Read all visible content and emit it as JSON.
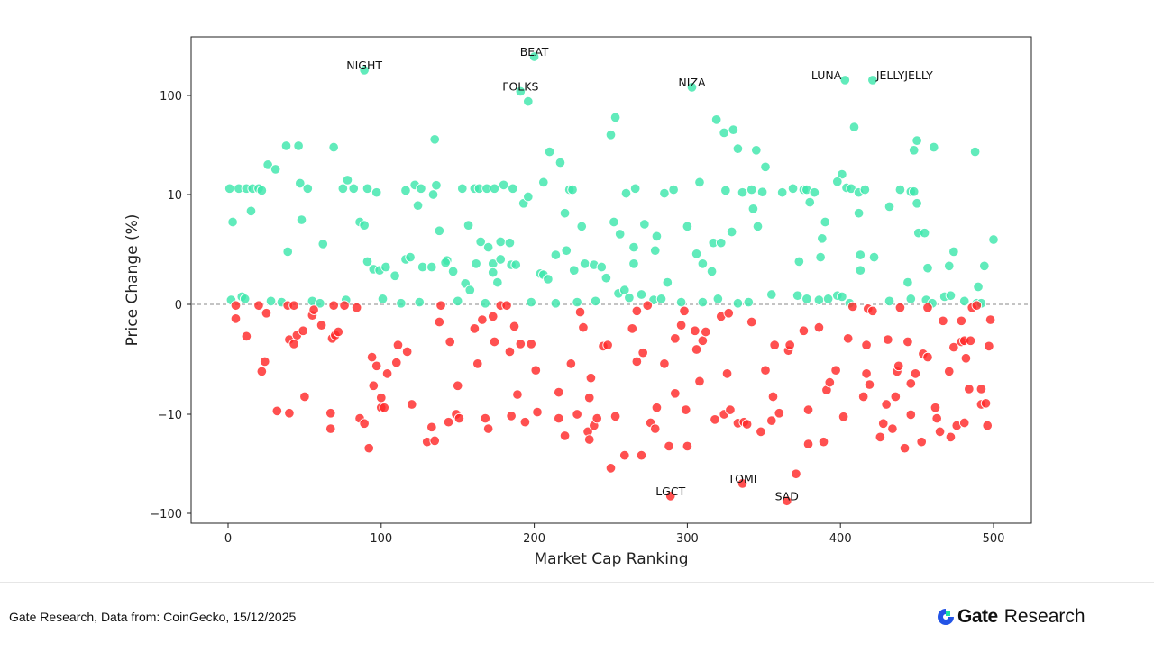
{
  "chart_data": {
    "type": "scatter",
    "title": "",
    "xlabel": "Market Cap Ranking",
    "ylabel": "Price Change (%)",
    "xlim": [
      -24,
      525
    ],
    "ylim": [
      -140,
      380
    ],
    "yscale": "symlog",
    "ylinthresh": 10,
    "xticks": [
      0,
      100,
      200,
      300,
      400,
      500
    ],
    "yticks": [
      {
        "value": 100,
        "label": "100"
      },
      {
        "value": 10,
        "label": "10"
      },
      {
        "value": 0,
        "label": "0"
      },
      {
        "value": -10,
        "label": "−10"
      },
      {
        "value": -100,
        "label": "−100"
      }
    ],
    "zero_line": "dashed",
    "grid": false,
    "colors": {
      "positive": "#3ee6ac",
      "negative": "#ff2a2a",
      "zero_line": "#888888"
    },
    "annotations": [
      {
        "label": "NIGHT",
        "x": 89,
        "y": 180
      },
      {
        "label": "BEAT",
        "x": 200,
        "y": 246
      },
      {
        "label": "FOLKS",
        "x": 191,
        "y": 110
      },
      {
        "label": "NIZA",
        "x": 303,
        "y": 121
      },
      {
        "label": "LUNA",
        "x": 403,
        "y": 143
      },
      {
        "label": "JELLYJELLY",
        "x": 421,
        "y": 143
      },
      {
        "label": "LGCT",
        "x": 289,
        "y": -67
      },
      {
        "label": "TOMI",
        "x": 336,
        "y": -50
      },
      {
        "label": "SAD",
        "x": 365,
        "y": -75
      }
    ],
    "points": [
      [
        1,
        11.5
      ],
      [
        3,
        7.5
      ],
      [
        7,
        11.5
      ],
      [
        12,
        11.5
      ],
      [
        15,
        8.5
      ],
      [
        16,
        11.5
      ],
      [
        20,
        11.5
      ],
      [
        22,
        11
      ],
      [
        26,
        20
      ],
      [
        31,
        18
      ],
      [
        38,
        31
      ],
      [
        46,
        31
      ],
      [
        47,
        13
      ],
      [
        52,
        11.5
      ],
      [
        48,
        7.7
      ],
      [
        39,
        4.8
      ],
      [
        62,
        5.5
      ],
      [
        69,
        30
      ],
      [
        75,
        11.5
      ],
      [
        78,
        14
      ],
      [
        82,
        11.5
      ],
      [
        86,
        7.5
      ],
      [
        89,
        7.2
      ],
      [
        89,
        180
      ],
      [
        91,
        11.5
      ],
      [
        97,
        10.5
      ],
      [
        91,
        3.9
      ],
      [
        95,
        3.2
      ],
      [
        99,
        3.1
      ],
      [
        103,
        3.4
      ],
      [
        109,
        2.6
      ],
      [
        116,
        4.1
      ],
      [
        119,
        4.3
      ],
      [
        122,
        12.5
      ],
      [
        126,
        11.5
      ],
      [
        124,
        9
      ],
      [
        116,
        11
      ],
      [
        127,
        3.4
      ],
      [
        133,
        3.4
      ],
      [
        134,
        10
      ],
      [
        136,
        12.4
      ],
      [
        135,
        36
      ],
      [
        138,
        6.7
      ],
      [
        143,
        4
      ],
      [
        142,
        3.8
      ],
      [
        147,
        3
      ],
      [
        153,
        11.5
      ],
      [
        157,
        7.2
      ],
      [
        155,
        1.9
      ],
      [
        158,
        1.3
      ],
      [
        161,
        11.5
      ],
      [
        164,
        11.5
      ],
      [
        169,
        11.5
      ],
      [
        174,
        11.5
      ],
      [
        180,
        12.5
      ],
      [
        186,
        11.5
      ],
      [
        165,
        5.7
      ],
      [
        170,
        5.2
      ],
      [
        178,
        5.7
      ],
      [
        184,
        5.6
      ],
      [
        162,
        3.7
      ],
      [
        173,
        3.7
      ],
      [
        178,
        4.1
      ],
      [
        185,
        3.6
      ],
      [
        188,
        3.6
      ],
      [
        173,
        2.9
      ],
      [
        176,
        2.0
      ],
      [
        191,
        110
      ],
      [
        196,
        87
      ],
      [
        200,
        246
      ],
      [
        193,
        9.2
      ],
      [
        196,
        9.8
      ],
      [
        206,
        13.3
      ],
      [
        210,
        27
      ],
      [
        217,
        21
      ],
      [
        220,
        8.3
      ],
      [
        223,
        11.2
      ],
      [
        225,
        11.2
      ],
      [
        204,
        2.8
      ],
      [
        206,
        2.7
      ],
      [
        209,
        2.3
      ],
      [
        214,
        4.5
      ],
      [
        221,
        4.9
      ],
      [
        231,
        7.1
      ],
      [
        233,
        3.7
      ],
      [
        239,
        3.6
      ],
      [
        244,
        3.4
      ],
      [
        226,
        3.1
      ],
      [
        247,
        2.4
      ],
      [
        250,
        40
      ],
      [
        253,
        60
      ],
      [
        252,
        7.5
      ],
      [
        256,
        6.4
      ],
      [
        260,
        10.3
      ],
      [
        266,
        11.5
      ],
      [
        265,
        5.2
      ],
      [
        265,
        3.7
      ],
      [
        255,
        1
      ],
      [
        259,
        1.3
      ],
      [
        272,
        7.3
      ],
      [
        280,
        6.2
      ],
      [
        279,
        4.9
      ],
      [
        285,
        10.3
      ],
      [
        291,
        11.2
      ],
      [
        287,
        2
      ],
      [
        300,
        7.1
      ],
      [
        303,
        121
      ],
      [
        308,
        13.3
      ],
      [
        306,
        4.6
      ],
      [
        310,
        3.7
      ],
      [
        316,
        3
      ],
      [
        319,
        57
      ],
      [
        324,
        42
      ],
      [
        330,
        45
      ],
      [
        333,
        29
      ],
      [
        345,
        28
      ],
      [
        351,
        19
      ],
      [
        343,
        8.7
      ],
      [
        346,
        7.1
      ],
      [
        325,
        11
      ],
      [
        317,
        5.6
      ],
      [
        322,
        5.6
      ],
      [
        329,
        6.6
      ],
      [
        336,
        10.5
      ],
      [
        342,
        11.2
      ],
      [
        349,
        10.6
      ],
      [
        362,
        10.5
      ],
      [
        369,
        11.5
      ],
      [
        376,
        11.2
      ],
      [
        378,
        11.2
      ],
      [
        383,
        10.5
      ],
      [
        373,
        3.9
      ],
      [
        380,
        9.3
      ],
      [
        388,
        6
      ],
      [
        390,
        7.5
      ],
      [
        387,
        4.3
      ],
      [
        401,
        16
      ],
      [
        398,
        13.5
      ],
      [
        404,
        11.7
      ],
      [
        407,
        11.5
      ],
      [
        403,
        143
      ],
      [
        409,
        48
      ],
      [
        412,
        10.5
      ],
      [
        412,
        8.3
      ],
      [
        416,
        11.2
      ],
      [
        421,
        143
      ],
      [
        413,
        4.5
      ],
      [
        422,
        4.3
      ],
      [
        413,
        3.1
      ],
      [
        448,
        28
      ],
      [
        450,
        35
      ],
      [
        461,
        30
      ],
      [
        446,
        10.7
      ],
      [
        448,
        10.7
      ],
      [
        450,
        9.2
      ],
      [
        439,
        11.2
      ],
      [
        432,
        8.9
      ],
      [
        488,
        27
      ],
      [
        451,
        6.5
      ],
      [
        455,
        6.5
      ],
      [
        474,
        4.8
      ],
      [
        471,
        3.5
      ],
      [
        494,
        3.5
      ],
      [
        500,
        5.9
      ],
      [
        490,
        1.6
      ],
      [
        444,
        2
      ],
      [
        457,
        3.3
      ],
      [
        2,
        0.4
      ],
      [
        9,
        0.7
      ],
      [
        11,
        0.5
      ],
      [
        28,
        0.3
      ],
      [
        35,
        0.2
      ],
      [
        55,
        0.3
      ],
      [
        60,
        0.1
      ],
      [
        77,
        0.4
      ],
      [
        101,
        0.5
      ],
      [
        113,
        0.1
      ],
      [
        125,
        0.2
      ],
      [
        150,
        0.3
      ],
      [
        168,
        0.1
      ],
      [
        198,
        0.2
      ],
      [
        214,
        0.1
      ],
      [
        228,
        0.2
      ],
      [
        240,
        0.3
      ],
      [
        262,
        0.6
      ],
      [
        270,
        0.9
      ],
      [
        278,
        0.4
      ],
      [
        283,
        0.5
      ],
      [
        296,
        0.2
      ],
      [
        310,
        0.2
      ],
      [
        320,
        0.5
      ],
      [
        333,
        0.1
      ],
      [
        340,
        0.2
      ],
      [
        355,
        0.9
      ],
      [
        372,
        0.8
      ],
      [
        378,
        0.5
      ],
      [
        386,
        0.4
      ],
      [
        392,
        0.5
      ],
      [
        398,
        0.8
      ],
      [
        401,
        0.7
      ],
      [
        406,
        0.1
      ],
      [
        432,
        0.3
      ],
      [
        446,
        0.5
      ],
      [
        456,
        0.4
      ],
      [
        460,
        0.1
      ],
      [
        468,
        0.7
      ],
      [
        472,
        0.8
      ],
      [
        481,
        0.3
      ],
      [
        489,
        0.1
      ],
      [
        492,
        0.1
      ],
      [
        5,
        -1.3
      ],
      [
        5,
        -0.1
      ],
      [
        12,
        -2.9
      ],
      [
        20,
        -0.1
      ],
      [
        22,
        -6.1
      ],
      [
        24,
        -5.2
      ],
      [
        25,
        -0.8
      ],
      [
        32,
        -9.7
      ],
      [
        39,
        -0.1
      ],
      [
        43,
        -0.1
      ],
      [
        40,
        -3.2
      ],
      [
        43,
        -3.6
      ],
      [
        45,
        -2.8
      ],
      [
        40,
        -9.9
      ],
      [
        49,
        -2.4
      ],
      [
        50,
        -8.4
      ],
      [
        55,
        -1
      ],
      [
        56,
        -0.5
      ],
      [
        61,
        -1.9
      ],
      [
        67,
        -14
      ],
      [
        67,
        -9.9
      ],
      [
        68,
        -3.1
      ],
      [
        70,
        -2.8
      ],
      [
        72,
        -2.5
      ],
      [
        69,
        -0.1
      ],
      [
        76,
        -0.1
      ],
      [
        84,
        -0.3
      ],
      [
        86,
        -11
      ],
      [
        89,
        -12.4
      ],
      [
        92,
        -22
      ],
      [
        94,
        -4.8
      ],
      [
        95,
        -7.4
      ],
      [
        97,
        -5.6
      ],
      [
        100,
        -8.5
      ],
      [
        100,
        -9.4
      ],
      [
        102,
        -9.4
      ],
      [
        104,
        -6.3
      ],
      [
        110,
        -5.3
      ],
      [
        111,
        -3.7
      ],
      [
        117,
        -4.3
      ],
      [
        120,
        -9.1
      ],
      [
        130,
        -19
      ],
      [
        133,
        -13.5
      ],
      [
        135,
        -18.5
      ],
      [
        138,
        -1.6
      ],
      [
        139,
        -0.1
      ],
      [
        145,
        -3.4
      ],
      [
        144,
        -12
      ],
      [
        149,
        -10
      ],
      [
        150,
        -7.4
      ],
      [
        151,
        -11
      ],
      [
        161,
        -2.2
      ],
      [
        163,
        -5.4
      ],
      [
        166,
        -1.4
      ],
      [
        168,
        -11
      ],
      [
        170,
        -14
      ],
      [
        173,
        -1.1
      ],
      [
        174,
        -3.4
      ],
      [
        178,
        -0.1
      ],
      [
        182,
        -0.1
      ],
      [
        184,
        -4.3
      ],
      [
        185,
        -10.4
      ],
      [
        187,
        -2
      ],
      [
        189,
        -8.2
      ],
      [
        191,
        -3.6
      ],
      [
        194,
        -12
      ],
      [
        198,
        -3.6
      ],
      [
        201,
        -6
      ],
      [
        202,
        -9.8
      ],
      [
        216,
        -8
      ],
      [
        216,
        -11
      ],
      [
        220,
        -16.5
      ],
      [
        224,
        -5.4
      ],
      [
        228,
        -10
      ],
      [
        230,
        -0.7
      ],
      [
        232,
        -2.1
      ],
      [
        235,
        -15
      ],
      [
        236,
        -18
      ],
      [
        236,
        -8.5
      ],
      [
        237,
        -6.7
      ],
      [
        239,
        -13
      ],
      [
        241,
        -11
      ],
      [
        245,
        -3.8
      ],
      [
        248,
        -3.7
      ],
      [
        250,
        -35
      ],
      [
        253,
        -10.5
      ],
      [
        259,
        -26
      ],
      [
        264,
        -2.2
      ],
      [
        267,
        -5.2
      ],
      [
        267,
        -0.6
      ],
      [
        270,
        -26
      ],
      [
        271,
        -4.4
      ],
      [
        274,
        -0.1
      ],
      [
        276,
        -12.2
      ],
      [
        279,
        -14
      ],
      [
        280,
        -9.4
      ],
      [
        285,
        -5.4
      ],
      [
        288,
        -21
      ],
      [
        289,
        -67
      ],
      [
        292,
        -8.1
      ],
      [
        292,
        -3.1
      ],
      [
        296,
        -1.9
      ],
      [
        298,
        -0.6
      ],
      [
        299,
        -9.6
      ],
      [
        300,
        -21
      ],
      [
        305,
        -2.4
      ],
      [
        306,
        -4.1
      ],
      [
        310,
        -3.3
      ],
      [
        312,
        -2.5
      ],
      [
        308,
        -7
      ],
      [
        318,
        -11.3
      ],
      [
        322,
        -1.1
      ],
      [
        327,
        -0.8
      ],
      [
        324,
        -10
      ],
      [
        326,
        -6.3
      ],
      [
        328,
        -9.6
      ],
      [
        333,
        -12.3
      ],
      [
        337,
        -12
      ],
      [
        339,
        -12.6
      ],
      [
        336,
        -50
      ],
      [
        342,
        -1.6
      ],
      [
        348,
        -15
      ],
      [
        351,
        -6
      ],
      [
        355,
        -11.6
      ],
      [
        356,
        -8.4
      ],
      [
        357,
        -3.7
      ],
      [
        360,
        -9.9
      ],
      [
        365,
        -75
      ],
      [
        366,
        -4.2
      ],
      [
        367,
        -3.7
      ],
      [
        371,
        -40
      ],
      [
        376,
        -2.4
      ],
      [
        379,
        -9.6
      ],
      [
        379,
        -20
      ],
      [
        386,
        -2.1
      ],
      [
        389,
        -19
      ],
      [
        391,
        -7.8
      ],
      [
        393,
        -7.1
      ],
      [
        397,
        -6
      ],
      [
        402,
        -10.6
      ],
      [
        405,
        -3.1
      ],
      [
        408,
        -0.2
      ],
      [
        415,
        -8.4
      ],
      [
        417,
        -3.7
      ],
      [
        417,
        -6.3
      ],
      [
        419,
        -7.3
      ],
      [
        418,
        -0.4
      ],
      [
        421,
        -0.6
      ],
      [
        426,
        -17
      ],
      [
        428,
        -12.4
      ],
      [
        430,
        -9.1
      ],
      [
        431,
        -3.2
      ],
      [
        434,
        -14
      ],
      [
        436,
        -8.4
      ],
      [
        437,
        -6.1
      ],
      [
        438,
        -5.6
      ],
      [
        439,
        -0.3
      ],
      [
        442,
        -22
      ],
      [
        444,
        -3.4
      ],
      [
        446,
        -7.2
      ],
      [
        446,
        -10.1
      ],
      [
        449,
        -6.3
      ],
      [
        453,
        -19
      ],
      [
        454,
        -4.5
      ],
      [
        457,
        -4.8
      ],
      [
        457,
        -0.3
      ],
      [
        462,
        -9.4
      ],
      [
        463,
        -11
      ],
      [
        465,
        -15
      ],
      [
        467,
        -1.5
      ],
      [
        471,
        -6.1
      ],
      [
        472,
        -17
      ],
      [
        474,
        -3.9
      ],
      [
        476,
        -13
      ],
      [
        479,
        -1.5
      ],
      [
        479,
        -3.4
      ],
      [
        481,
        -3.3
      ],
      [
        481,
        -12.2
      ],
      [
        482,
        -4.9
      ],
      [
        484,
        -7.7
      ],
      [
        485,
        -3.3
      ],
      [
        486,
        -0.3
      ],
      [
        489,
        -0.1
      ],
      [
        492,
        -9.1
      ],
      [
        492,
        -7.7
      ],
      [
        495,
        -9
      ],
      [
        496,
        -13
      ],
      [
        497,
        -3.8
      ],
      [
        498,
        -1.4
      ]
    ]
  },
  "footer": {
    "source": "Gate Research, Data from: CoinGecko, 15/12/2025",
    "brand_name": "Gate",
    "brand_sub": "Research"
  }
}
